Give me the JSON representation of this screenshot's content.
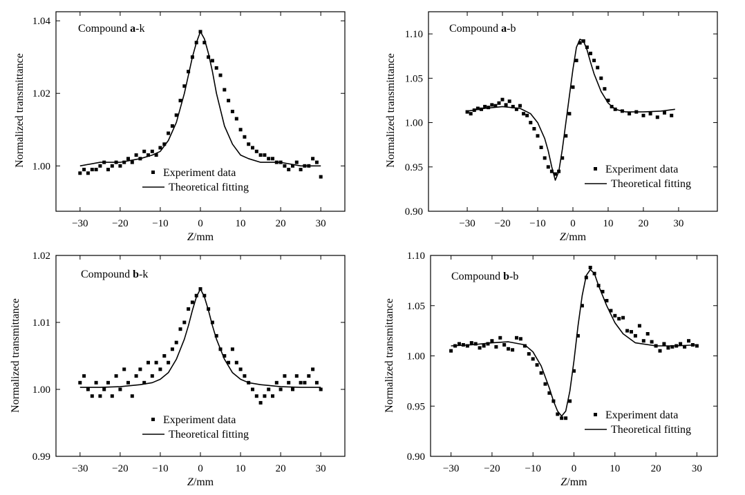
{
  "chart_data": [
    {
      "type": "scatter",
      "title_prefix": "Compound ",
      "title_bold": "a",
      "title_suffix": "-k",
      "xlabel_italic": "Z",
      "xlabel_rest": "/mm",
      "ylabel": "Normalized transmittance",
      "xlim": [
        -36,
        36
      ],
      "ylim": [
        0.9875,
        1.0425
      ],
      "xticks": [
        -30,
        -20,
        -10,
        0,
        10,
        20,
        30
      ],
      "yticks": [
        1.0,
        1.02,
        1.04
      ],
      "ytick_labels": [
        "1.00",
        "1.02",
        "1.04"
      ],
      "legend": [
        "Experiment data",
        "Theoretical fitting"
      ],
      "series": [
        {
          "name": "Experiment data",
          "x": [
            -30,
            -29,
            -28,
            -27,
            -26,
            -25,
            -24,
            -23,
            -22,
            -21,
            -20,
            -19,
            -18,
            -17,
            -16,
            -15,
            -14,
            -13,
            -12,
            -11,
            -10,
            -9,
            -8,
            -7,
            -6,
            -5,
            -4,
            -3,
            -2,
            -1,
            0,
            1,
            2,
            3,
            4,
            5,
            6,
            7,
            8,
            9,
            10,
            11,
            12,
            13,
            14,
            15,
            16,
            17,
            18,
            19,
            20,
            21,
            22,
            23,
            24,
            25,
            26,
            27,
            28,
            29,
            30
          ],
          "y": [
            0.998,
            0.999,
            0.998,
            0.999,
            0.999,
            1.0,
            1.001,
            0.999,
            1.0,
            1.001,
            1.0,
            1.001,
            1.002,
            1.001,
            1.003,
            1.002,
            1.004,
            1.003,
            1.004,
            1.003,
            1.005,
            1.006,
            1.009,
            1.011,
            1.014,
            1.018,
            1.022,
            1.026,
            1.03,
            1.034,
            1.037,
            1.034,
            1.03,
            1.029,
            1.027,
            1.025,
            1.021,
            1.018,
            1.015,
            1.013,
            1.01,
            1.008,
            1.006,
            1.005,
            1.004,
            1.003,
            1.003,
            1.002,
            1.002,
            1.001,
            1.001,
            1.0,
            0.999,
            1.0,
            1.001,
            0.999,
            1.0,
            1.0,
            1.002,
            1.001,
            0.997
          ]
        },
        {
          "name": "Theoretical fitting",
          "x": [
            -30,
            -25,
            -20,
            -15,
            -12,
            -10,
            -8,
            -6,
            -4,
            -3,
            -2,
            -1,
            0,
            1,
            2,
            3,
            4,
            6,
            8,
            10,
            12,
            15,
            20,
            25,
            30
          ],
          "y": [
            1.0,
            1.001,
            1.001,
            1.002,
            1.003,
            1.004,
            1.007,
            1.012,
            1.02,
            1.025,
            1.03,
            1.034,
            1.037,
            1.035,
            1.031,
            1.026,
            1.02,
            1.011,
            1.006,
            1.003,
            1.002,
            1.001,
            1.001,
            1.0,
            1.0
          ]
        }
      ]
    },
    {
      "type": "scatter",
      "title_prefix": "Compound ",
      "title_bold": "a",
      "title_suffix": "-b",
      "xlabel_italic": "Z",
      "xlabel_rest": "/mm",
      "ylabel": "Normalized transmittance",
      "xlim": [
        -41,
        41
      ],
      "ylim": [
        0.9,
        1.125
      ],
      "xticks": [
        -30,
        -20,
        -10,
        0,
        10,
        20,
        30
      ],
      "yticks": [
        0.9,
        0.95,
        1.0,
        1.05,
        1.1
      ],
      "ytick_labels": [
        "0.90",
        "0.95",
        "1.00",
        "1.05",
        "1.10"
      ],
      "legend": [
        "Experiment data",
        "Theoretical fitting"
      ],
      "series": [
        {
          "name": "Experiment data",
          "x": [
            -30,
            -29,
            -28,
            -27,
            -26,
            -25,
            -24,
            -23,
            -22,
            -21,
            -20,
            -19,
            -18,
            -17,
            -16,
            -15,
            -14,
            -13,
            -12,
            -11,
            -10,
            -9,
            -8,
            -7,
            -6,
            -5,
            -4,
            -3,
            -2,
            -1,
            0,
            1,
            2,
            3,
            4,
            5,
            6,
            7,
            8,
            9,
            10,
            11,
            12,
            14,
            16,
            18,
            20,
            22,
            24,
            26,
            28
          ],
          "y": [
            1.012,
            1.01,
            1.014,
            1.016,
            1.015,
            1.018,
            1.017,
            1.02,
            1.019,
            1.022,
            1.026,
            1.02,
            1.024,
            1.018,
            1.015,
            1.019,
            1.01,
            1.008,
            1.0,
            0.993,
            0.985,
            0.972,
            0.96,
            0.95,
            0.945,
            0.942,
            0.945,
            0.96,
            0.985,
            1.01,
            1.04,
            1.07,
            1.09,
            1.092,
            1.085,
            1.078,
            1.07,
            1.062,
            1.05,
            1.038,
            1.025,
            1.018,
            1.015,
            1.013,
            1.01,
            1.012,
            1.008,
            1.01,
            1.006,
            1.011,
            1.008
          ]
        },
        {
          "name": "Theoretical fitting",
          "x": [
            -30,
            -25,
            -20,
            -15,
            -12,
            -10,
            -8,
            -7,
            -6,
            -5,
            -4,
            -3,
            -2,
            -1,
            0,
            1,
            2,
            3,
            4,
            5,
            6,
            8,
            10,
            12,
            15,
            20,
            25,
            29
          ],
          "y": [
            1.013,
            1.016,
            1.018,
            1.016,
            1.01,
            1.0,
            0.982,
            0.968,
            0.95,
            0.935,
            0.945,
            0.97,
            1.0,
            1.03,
            1.06,
            1.085,
            1.094,
            1.092,
            1.082,
            1.068,
            1.055,
            1.035,
            1.022,
            1.015,
            1.012,
            1.012,
            1.013,
            1.015
          ]
        }
      ]
    },
    {
      "type": "scatter",
      "title_prefix": "Compound ",
      "title_bold": "b",
      "title_suffix": "-k",
      "xlabel_italic": "Z",
      "xlabel_rest": "/mm",
      "ylabel": "Normalized transmittance",
      "xlim": [
        -36,
        36
      ],
      "ylim": [
        0.99,
        1.02
      ],
      "xticks": [
        -30,
        -20,
        -10,
        0,
        10,
        20,
        30
      ],
      "yticks": [
        0.99,
        1.0,
        1.01,
        1.02
      ],
      "ytick_labels": [
        "0.99",
        "1.00",
        "1.01",
        "1.02"
      ],
      "legend": [
        "Experiment data",
        "Theoretical fitting"
      ],
      "series": [
        {
          "name": "Experiment data",
          "x": [
            -30,
            -29,
            -28,
            -27,
            -26,
            -25,
            -24,
            -23,
            -22,
            -21,
            -20,
            -19,
            -18,
            -17,
            -16,
            -15,
            -14,
            -13,
            -12,
            -11,
            -10,
            -9,
            -8,
            -7,
            -6,
            -5,
            -4,
            -3,
            -2,
            -1,
            0,
            1,
            2,
            3,
            4,
            5,
            6,
            7,
            8,
            9,
            10,
            11,
            12,
            13,
            14,
            15,
            16,
            17,
            18,
            19,
            20,
            21,
            22,
            23,
            24,
            25,
            26,
            27,
            28,
            29,
            30
          ],
          "y": [
            1.001,
            1.002,
            1.0,
            0.999,
            1.001,
            0.999,
            1.0,
            1.001,
            0.999,
            1.002,
            1.0,
            1.003,
            1.001,
            0.999,
            1.002,
            1.003,
            1.001,
            1.004,
            1.002,
            1.004,
            1.003,
            1.005,
            1.004,
            1.006,
            1.007,
            1.009,
            1.01,
            1.012,
            1.013,
            1.014,
            1.015,
            1.014,
            1.012,
            1.01,
            1.008,
            1.006,
            1.005,
            1.004,
            1.006,
            1.004,
            1.003,
            1.002,
            1.001,
            1.0,
            0.999,
            0.998,
            0.999,
            1.0,
            0.999,
            1.001,
            1.0,
            1.002,
            1.001,
            1.0,
            1.002,
            1.001,
            1.001,
            1.002,
            1.003,
            1.001,
            1.0
          ]
        },
        {
          "name": "Theoretical fitting",
          "x": [
            -30,
            -25,
            -20,
            -15,
            -12,
            -10,
            -8,
            -6,
            -4,
            -3,
            -2,
            -1,
            0,
            1,
            2,
            3,
            4,
            6,
            8,
            10,
            12,
            15,
            20,
            25,
            30
          ],
          "y": [
            1.0003,
            1.0003,
            1.0004,
            1.0007,
            1.001,
            1.0015,
            1.0025,
            1.0045,
            1.0075,
            1.0095,
            1.0118,
            1.0138,
            1.015,
            1.0138,
            1.0118,
            1.0095,
            1.0075,
            1.0045,
            1.0025,
            1.0015,
            1.001,
            1.0007,
            1.0004,
            1.0003,
            1.0003
          ]
        }
      ]
    },
    {
      "type": "scatter",
      "title_prefix": "Compound ",
      "title_bold": "b",
      "title_suffix": "-b",
      "xlabel_italic": "Z",
      "xlabel_rest": "/mm",
      "ylabel": "Normalized transmittance",
      "xlim": [
        -35,
        35
      ],
      "ylim": [
        0.9,
        1.1
      ],
      "xticks": [
        -30,
        -20,
        -10,
        0,
        10,
        20,
        30
      ],
      "yticks": [
        0.9,
        0.95,
        1.0,
        1.05,
        1.1
      ],
      "ytick_labels": [
        "0.90",
        "0.95",
        "1.00",
        "1.05",
        "1.10"
      ],
      "legend": [
        "Experiment data",
        "Theoretical fitting"
      ],
      "series": [
        {
          "name": "Experiment data",
          "x": [
            -30,
            -29,
            -28,
            -27,
            -26,
            -25,
            -24,
            -23,
            -22,
            -21,
            -20,
            -19,
            -18,
            -17,
            -16,
            -15,
            -14,
            -13,
            -12,
            -11,
            -10,
            -9,
            -8,
            -7,
            -6,
            -5,
            -4,
            -3,
            -2,
            -1,
            0,
            1,
            2,
            3,
            4,
            5,
            6,
            7,
            8,
            9,
            10,
            11,
            12,
            13,
            14,
            15,
            16,
            17,
            18,
            19,
            20,
            21,
            22,
            23,
            24,
            25,
            26,
            27,
            28,
            29,
            30
          ],
          "y": [
            1.005,
            1.01,
            1.012,
            1.011,
            1.01,
            1.013,
            1.012,
            1.008,
            1.01,
            1.012,
            1.015,
            1.009,
            1.018,
            1.011,
            1.007,
            1.006,
            1.018,
            1.017,
            1.01,
            1.002,
            0.997,
            0.991,
            0.983,
            0.972,
            0.963,
            0.955,
            0.942,
            0.938,
            0.938,
            0.955,
            0.985,
            1.02,
            1.05,
            1.078,
            1.088,
            1.082,
            1.07,
            1.064,
            1.055,
            1.045,
            1.04,
            1.037,
            1.038,
            1.025,
            1.024,
            1.02,
            1.03,
            1.015,
            1.022,
            1.014,
            1.01,
            1.005,
            1.012,
            1.008,
            1.009,
            1.01,
            1.012,
            1.009,
            1.015,
            1.011,
            1.01
          ]
        },
        {
          "name": "Theoretical fitting",
          "x": [
            -30,
            -25,
            -20,
            -16,
            -12,
            -10,
            -8,
            -6,
            -5,
            -4,
            -3,
            -2,
            -1,
            0,
            1,
            2,
            3,
            4,
            5,
            6,
            8,
            10,
            12,
            15,
            20,
            25,
            30
          ],
          "y": [
            1.01,
            1.011,
            1.013,
            1.014,
            1.011,
            1.004,
            0.99,
            0.968,
            0.955,
            0.945,
            0.94,
            0.945,
            0.965,
            0.995,
            1.03,
            1.06,
            1.08,
            1.086,
            1.082,
            1.07,
            1.05,
            1.033,
            1.022,
            1.013,
            1.01,
            1.01,
            1.011
          ]
        }
      ]
    }
  ]
}
